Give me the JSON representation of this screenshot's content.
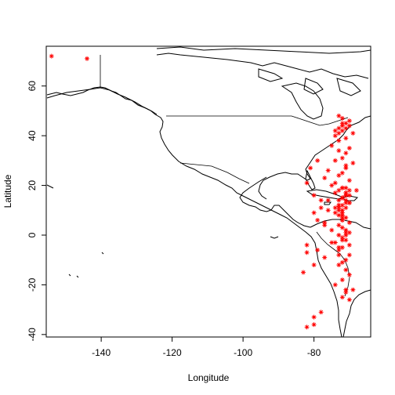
{
  "chart_data": {
    "type": "scatter",
    "xlabel": "Longitude",
    "ylabel": "Latitude",
    "xlim": [
      -155.5,
      -64
    ],
    "ylim": [
      -41,
      76
    ],
    "x_ticks": [
      -140,
      -120,
      -100,
      -80
    ],
    "y_ticks": [
      -40,
      -20,
      0,
      20,
      40,
      60
    ],
    "grid": false,
    "marker": "asterisk",
    "marker_color": "#ff0000",
    "line_color": "#000000",
    "series": [
      {
        "x": [
          -154,
          -144,
          -73,
          -72,
          -74,
          -71,
          -70,
          -73,
          -72,
          -71,
          -74,
          -70,
          -72,
          -73,
          -71,
          -75,
          -69,
          -72,
          -73,
          -71,
          -70,
          -74,
          -72,
          -73,
          -71,
          -69,
          -76,
          -72,
          -71,
          -73,
          -70,
          -74,
          -72,
          -68,
          -75,
          -77,
          -79,
          -81,
          -82,
          -80,
          -78,
          -76,
          -74,
          -72,
          -70,
          -73,
          -71,
          -72,
          -70,
          -74,
          -73,
          -71,
          -72,
          -70,
          -73,
          -72,
          -71,
          -70,
          -73,
          -72,
          -71,
          -74,
          -72,
          -73,
          -70,
          -71,
          -72,
          -73,
          -71,
          -70,
          -72,
          -74,
          -69,
          -71,
          -72,
          -73,
          -70,
          -71,
          -72,
          -73,
          -71,
          -72,
          -73,
          -71,
          -72,
          -70,
          -73,
          -72,
          -71,
          -72,
          -71,
          -73,
          -72,
          -71,
          -70,
          -72,
          -71,
          -73,
          -72,
          -71,
          -77,
          -79,
          -76,
          -78,
          -75,
          -80,
          -74,
          -82,
          -79,
          -77,
          -80,
          -75,
          -82,
          -83,
          -71,
          -70,
          -73,
          -72,
          -71,
          -80,
          -82,
          -78,
          -77,
          -80
        ],
        "y": [
          72,
          71,
          43,
          44,
          42,
          45,
          46,
          41,
          47,
          43,
          40,
          44,
          42,
          38,
          39,
          36,
          41,
          45,
          48,
          33,
          35,
          30,
          31,
          34,
          28,
          29,
          26,
          25,
          27,
          24,
          22,
          21,
          19,
          18,
          20,
          23,
          30,
          27,
          21,
          16,
          11,
          14,
          17,
          15,
          13,
          12,
          11,
          10,
          16,
          9,
          8,
          7,
          6,
          5,
          4,
          3,
          2,
          1,
          0,
          -1,
          -2,
          -3,
          -5,
          -6,
          -8,
          -10,
          -11,
          -12,
          -14,
          -16,
          -18,
          -20,
          -22,
          -23,
          -25,
          -8,
          -4,
          1,
          6,
          14,
          17,
          19,
          12,
          13,
          15,
          18,
          11,
          9,
          17,
          7,
          16,
          10,
          8,
          14,
          13,
          12,
          19,
          18,
          15,
          16,
          4,
          6,
          10,
          14,
          2,
          9,
          11,
          -4,
          -6,
          -9,
          -12,
          -3,
          -7,
          -15,
          -22,
          -26,
          -5,
          -2,
          0,
          -33,
          -37,
          -31,
          5,
          -36
        ]
      }
    ]
  }
}
